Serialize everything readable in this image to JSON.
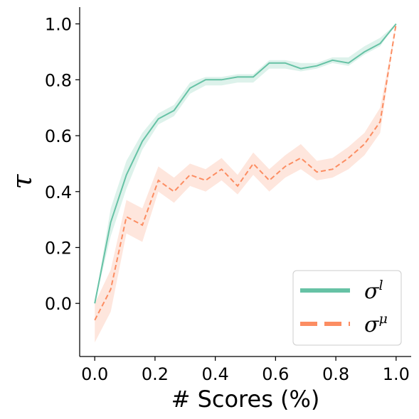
{
  "chart_data": {
    "type": "line",
    "xlabel": "# Scores (%)",
    "ylabel": "τ",
    "xlim": [
      -0.05,
      1.05
    ],
    "ylim": [
      -0.19,
      1.06
    ],
    "xticks": [
      0.0,
      0.2,
      0.4,
      0.6,
      0.8,
      1.0
    ],
    "xtick_labels": [
      "0.0",
      "0.2",
      "0.4",
      "0.6",
      "0.8",
      "1.0"
    ],
    "yticks": [
      0.0,
      0.2,
      0.4,
      0.6,
      0.8,
      1.0
    ],
    "ytick_labels": [
      "0.0",
      "0.2",
      "0.4",
      "0.6",
      "0.8",
      "1.0"
    ],
    "grid": false,
    "legend_position": "bottom-right",
    "x": [
      0.0,
      0.053,
      0.105,
      0.158,
      0.211,
      0.263,
      0.316,
      0.368,
      0.421,
      0.474,
      0.526,
      0.579,
      0.632,
      0.684,
      0.737,
      0.789,
      0.842,
      0.895,
      0.947,
      1.0
    ],
    "series": [
      {
        "name": "σ^l",
        "legend_base": "σ",
        "legend_sup": "l",
        "color": "#66c2a5",
        "style": "solid",
        "values": [
          0.0,
          0.29,
          0.46,
          0.58,
          0.66,
          0.69,
          0.77,
          0.8,
          0.8,
          0.81,
          0.81,
          0.86,
          0.86,
          0.84,
          0.85,
          0.87,
          0.86,
          0.9,
          0.93,
          1.0
        ],
        "lower": [
          0.0,
          0.24,
          0.41,
          0.55,
          0.64,
          0.67,
          0.75,
          0.78,
          0.78,
          0.79,
          0.79,
          0.84,
          0.84,
          0.83,
          0.84,
          0.86,
          0.85,
          0.89,
          0.92,
          1.0
        ],
        "upper": [
          0.0,
          0.34,
          0.51,
          0.61,
          0.68,
          0.71,
          0.79,
          0.81,
          0.81,
          0.82,
          0.82,
          0.87,
          0.87,
          0.86,
          0.86,
          0.88,
          0.88,
          0.92,
          0.95,
          1.0
        ]
      },
      {
        "name": "σ^μ",
        "legend_base": "σ",
        "legend_sup": "μ",
        "color": "#fc8d62",
        "style": "dashed",
        "values": [
          -0.06,
          0.05,
          0.31,
          0.28,
          0.44,
          0.4,
          0.46,
          0.44,
          0.48,
          0.42,
          0.5,
          0.44,
          0.49,
          0.52,
          0.47,
          0.48,
          0.52,
          0.57,
          0.65,
          1.0
        ],
        "lower": [
          -0.14,
          -0.03,
          0.25,
          0.22,
          0.4,
          0.36,
          0.42,
          0.4,
          0.44,
          0.39,
          0.46,
          0.4,
          0.45,
          0.48,
          0.44,
          0.45,
          0.48,
          0.53,
          0.61,
          1.0
        ],
        "upper": [
          0.0,
          0.12,
          0.37,
          0.34,
          0.49,
          0.45,
          0.5,
          0.48,
          0.52,
          0.46,
          0.54,
          0.48,
          0.53,
          0.57,
          0.51,
          0.52,
          0.56,
          0.61,
          0.7,
          1.0
        ]
      }
    ]
  }
}
